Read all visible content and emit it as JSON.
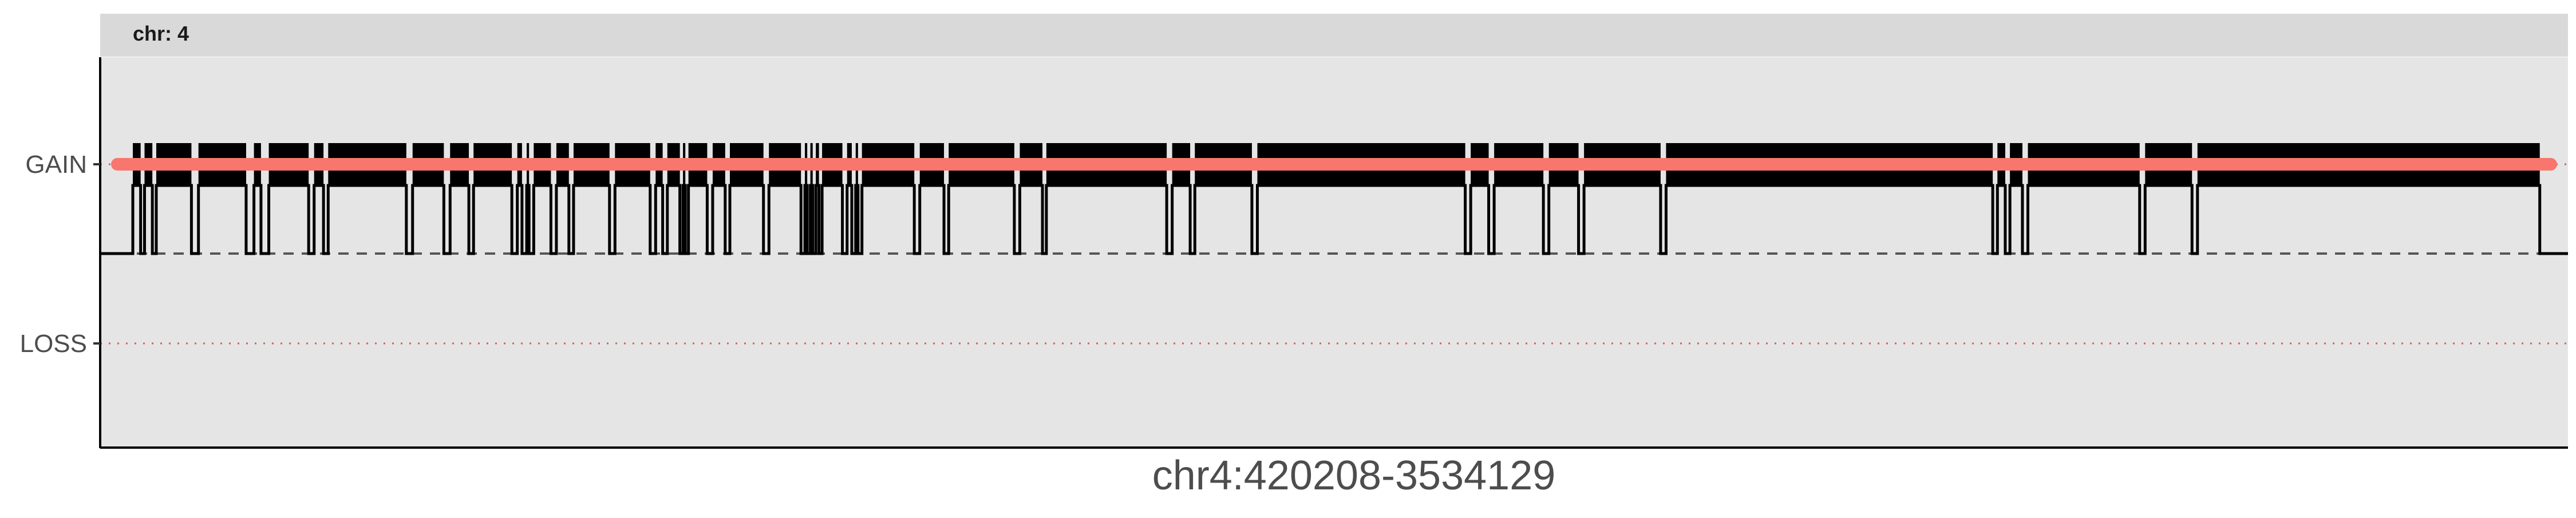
{
  "chart_data": {
    "type": "line",
    "facet_label": "chr: 4",
    "xlabel": "chr4:420208-3534129",
    "ylabel": "",
    "y_categories": [
      "LOSS",
      "GAIN"
    ],
    "y_baseline_state": "NEUTRAL",
    "reference_lines": [
      {
        "state": "GAIN",
        "style": "dotted",
        "color": "#e05a5a"
      },
      {
        "state": "NEUTRAL",
        "style": "dashed",
        "color": "#555555"
      },
      {
        "state": "LOSS",
        "style": "dotted",
        "color": "#e05a5a"
      }
    ],
    "xlim": [
      420208,
      3534129
    ],
    "series": [
      {
        "color": "#000000",
        "style": "step",
        "description_states": "GAIN segments interrupted by brief returns to NEUTRAL",
        "neutral_dips": [
          [
            420208,
            440000
          ],
          [
            450000,
            455000
          ],
          [
            465000,
            470000
          ],
          [
            515000,
            524000
          ],
          [
            585000,
            595000
          ],
          [
            604000,
            614000
          ],
          [
            665000,
            672000
          ],
          [
            684000,
            690000
          ],
          [
            790000,
            798000
          ],
          [
            838000,
            846000
          ],
          [
            870000,
            876000
          ],
          [
            925000,
            932000
          ],
          [
            938000,
            944000
          ],
          [
            947000,
            953000
          ],
          [
            975000,
            982000
          ],
          [
            998000,
            1004000
          ],
          [
            1050000,
            1057000
          ],
          [
            1102000,
            1109000
          ],
          [
            1118000,
            1124000
          ],
          [
            1140000,
            1144000
          ],
          [
            1147000,
            1151000
          ],
          [
            1175000,
            1182000
          ],
          [
            1198000,
            1204000
          ],
          [
            1247000,
            1254000
          ],
          [
            1295000,
            1300000
          ],
          [
            1303000,
            1307000
          ],
          [
            1310000,
            1314000
          ],
          [
            1318000,
            1322000
          ],
          [
            1348000,
            1354000
          ],
          [
            1360000,
            1365000
          ],
          [
            1368000,
            1373000
          ],
          [
            1440000,
            1447000
          ],
          [
            1478000,
            1484000
          ],
          [
            1568000,
            1575000
          ],
          [
            1604000,
            1609000
          ],
          [
            1763000,
            1770000
          ],
          [
            1793000,
            1799000
          ],
          [
            1872000,
            1879000
          ],
          [
            2145000,
            2152000
          ],
          [
            2175000,
            2182000
          ],
          [
            2245000,
            2252000
          ],
          [
            2290000,
            2297000
          ],
          [
            2395000,
            2402000
          ],
          [
            2820000,
            2826000
          ],
          [
            2836000,
            2842000
          ],
          [
            2858000,
            2865000
          ],
          [
            3008000,
            3015000
          ],
          [
            3075000,
            3082000
          ],
          [
            3520000,
            3534129
          ]
        ]
      },
      {
        "color": "#f8766d",
        "style": "thick-segment",
        "state": "GAIN",
        "x": [
          420208,
          3534129
        ]
      }
    ],
    "grid": false,
    "legend": "none",
    "background": "#e5e5e5",
    "strip_background": "#d9d9d9"
  }
}
